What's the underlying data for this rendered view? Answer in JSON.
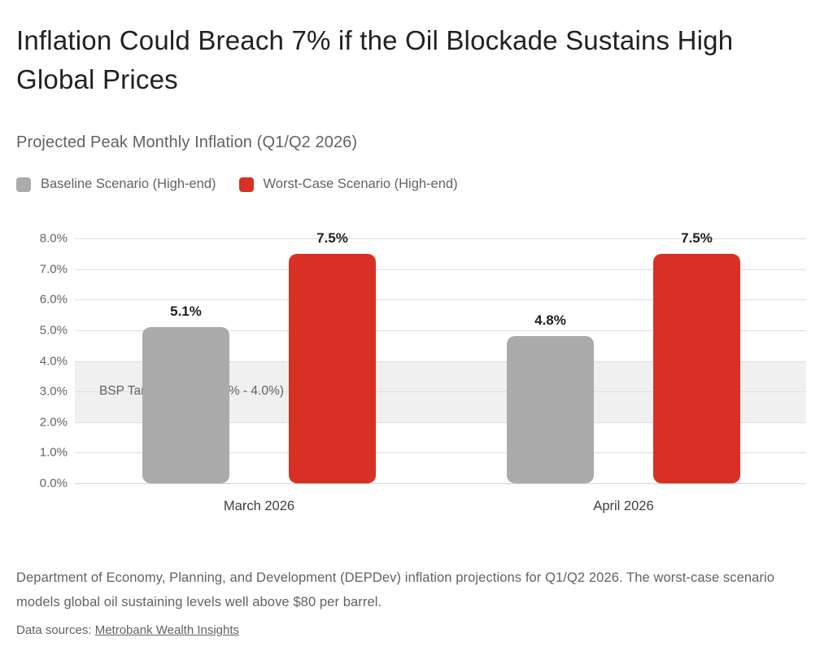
{
  "page": {
    "title": "Inflation Could Breach 7% if the Oil Blockade Sustains High Global Prices",
    "subtitle": "Projected Peak Monthly Inflation (Q1/Q2 2026)",
    "footnote": "Department of Economy, Planning, and Development (DEPDev) inflation projections for Q1/Q2 2026. The worst-case scenario models global oil sustaining levels well above $80 per barrel.",
    "datasources_prefix": "Data sources: ",
    "datasources_link": "Metrobank Wealth Insights"
  },
  "chart_data": {
    "type": "bar",
    "title": "Projected Peak Monthly Inflation (Q1/Q2 2026)",
    "categories": [
      "March 2026",
      "April 2026"
    ],
    "series": [
      {
        "name": "Baseline Scenario (High-end)",
        "color": "#ababab",
        "values": [
          5.1,
          4.8
        ]
      },
      {
        "name": "Worst-Case Scenario (High-end)",
        "color": "#d93025",
        "values": [
          7.5,
          7.5
        ]
      }
    ],
    "value_label_format": "{v}%",
    "ylim": [
      0,
      8
    ],
    "yticks": [
      "8.0%",
      "7.0%",
      "6.0%",
      "5.0%",
      "4.0%",
      "3.0%",
      "2.0%",
      "1.0%",
      "0.0%"
    ],
    "grid": true,
    "legend_position": "top-left",
    "band": {
      "from": 2.0,
      "to": 4.0,
      "label": "BSP Target Range (2.0% - 4.0%)",
      "color": "#f0f0f0"
    },
    "text_colors": {
      "title": "#202124",
      "subtitle": "#5f6368",
      "axis": "#5f6368",
      "value_labels": "#1f1f1f"
    }
  }
}
